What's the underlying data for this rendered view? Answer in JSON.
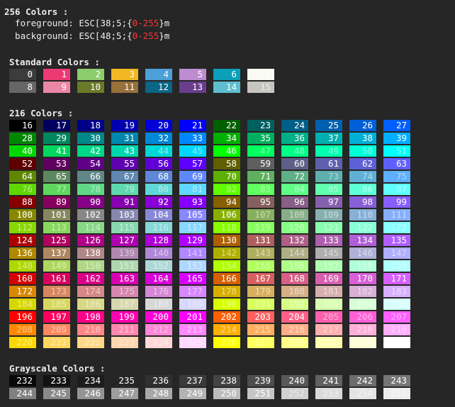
{
  "header": {
    "title": "256 Colors :",
    "fg_label": "  foreground: ESC[38;5;{",
    "bg_label": "  background: ESC[48;5;{",
    "range": "0-255",
    "suffix": "}m"
  },
  "sections": {
    "standard": "Standard Colors :",
    "cube": "216 Colors :",
    "grayscale": "Grayscale Colors :"
  },
  "standard_colors": [
    "#3c3c3c",
    "#ec3a74",
    "#8ccd6b",
    "#f2b722",
    "#4c9fd8",
    "#bd8ccf",
    "#0c9fb9",
    "#fafaf5",
    "#666666",
    "#ec86a6",
    "#6a7a28",
    "#98703a",
    "#0b6584",
    "#6a3d8d",
    "#5fbecd",
    "#c6c6be"
  ],
  "cube_levels": [
    0,
    95,
    135,
    175,
    215,
    255
  ],
  "grayscale_range": [
    232,
    255
  ]
}
